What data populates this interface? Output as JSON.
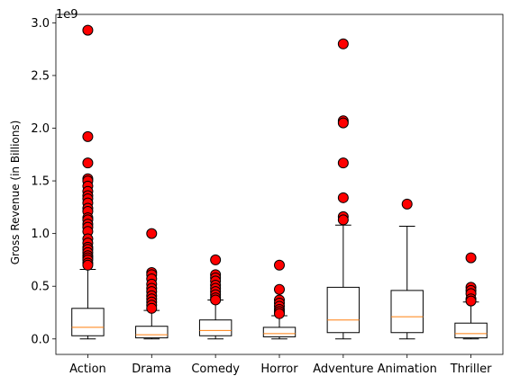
{
  "chart_data": {
    "type": "box",
    "title": "",
    "xlabel": "",
    "ylabel": "Gross Revenue (in Billions)",
    "y_offset_label": "1e9",
    "ylim": [
      -0.147,
      3.08
    ],
    "y_ticks": [
      0.0,
      0.5,
      1.0,
      1.5,
      2.0,
      2.5,
      3.0
    ],
    "y_tick_labels": [
      "0.0",
      "0.5",
      "1.0",
      "1.5",
      "2.0",
      "2.5",
      "3.0"
    ],
    "grid": false,
    "legend": "none",
    "categories": [
      "Action",
      "Drama",
      "Comedy",
      "Horror",
      "Adventure",
      "Animation",
      "Thriller"
    ],
    "boxes": [
      {
        "category": "Action",
        "whisker_low": 0.0,
        "q1": 0.03,
        "median": 0.11,
        "q3": 0.29,
        "whisker_high": 0.66,
        "outliers": [
          2.93,
          1.92,
          1.67,
          1.52,
          1.5,
          1.45,
          1.4,
          1.36,
          1.33,
          1.29,
          1.24,
          1.21,
          1.15,
          1.13,
          1.09,
          1.06,
          1.02,
          0.95,
          0.91,
          0.87,
          0.85,
          0.82,
          0.79,
          0.77,
          0.75,
          0.72,
          0.7
        ]
      },
      {
        "category": "Drama",
        "whisker_low": 0.0,
        "q1": 0.01,
        "median": 0.04,
        "q3": 0.12,
        "whisker_high": 0.27,
        "outliers": [
          1.0,
          0.63,
          0.61,
          0.57,
          0.52,
          0.48,
          0.45,
          0.41,
          0.38,
          0.35,
          0.32,
          0.29
        ]
      },
      {
        "category": "Comedy",
        "whisker_low": 0.0,
        "q1": 0.03,
        "median": 0.08,
        "q3": 0.18,
        "whisker_high": 0.37,
        "outliers": [
          0.75,
          0.61,
          0.58,
          0.55,
          0.51,
          0.48,
          0.45,
          0.42,
          0.39,
          0.37
        ]
      },
      {
        "category": "Horror",
        "whisker_low": 0.0,
        "q1": 0.02,
        "median": 0.05,
        "q3": 0.11,
        "whisker_high": 0.22,
        "outliers": [
          0.7,
          0.47,
          0.37,
          0.34,
          0.31,
          0.28,
          0.26,
          0.24
        ]
      },
      {
        "category": "Adventure",
        "whisker_low": 0.0,
        "q1": 0.06,
        "median": 0.18,
        "q3": 0.49,
        "whisker_high": 1.08,
        "outliers": [
          2.8,
          2.07,
          2.05,
          1.67,
          1.34,
          1.16,
          1.13
        ]
      },
      {
        "category": "Animation",
        "whisker_low": 0.0,
        "q1": 0.06,
        "median": 0.21,
        "q3": 0.46,
        "whisker_high": 1.07,
        "outliers": [
          1.28
        ]
      },
      {
        "category": "Thriller",
        "whisker_low": 0.0,
        "q1": 0.01,
        "median": 0.05,
        "q3": 0.15,
        "whisker_high": 0.35,
        "outliers": [
          0.77,
          0.49,
          0.46,
          0.43,
          0.38,
          0.36
        ]
      }
    ],
    "colors": {
      "box_edge": "#000000",
      "median": "#ff7f0e",
      "outlier_fill": "#ff0000",
      "outlier_edge": "#000000"
    }
  }
}
